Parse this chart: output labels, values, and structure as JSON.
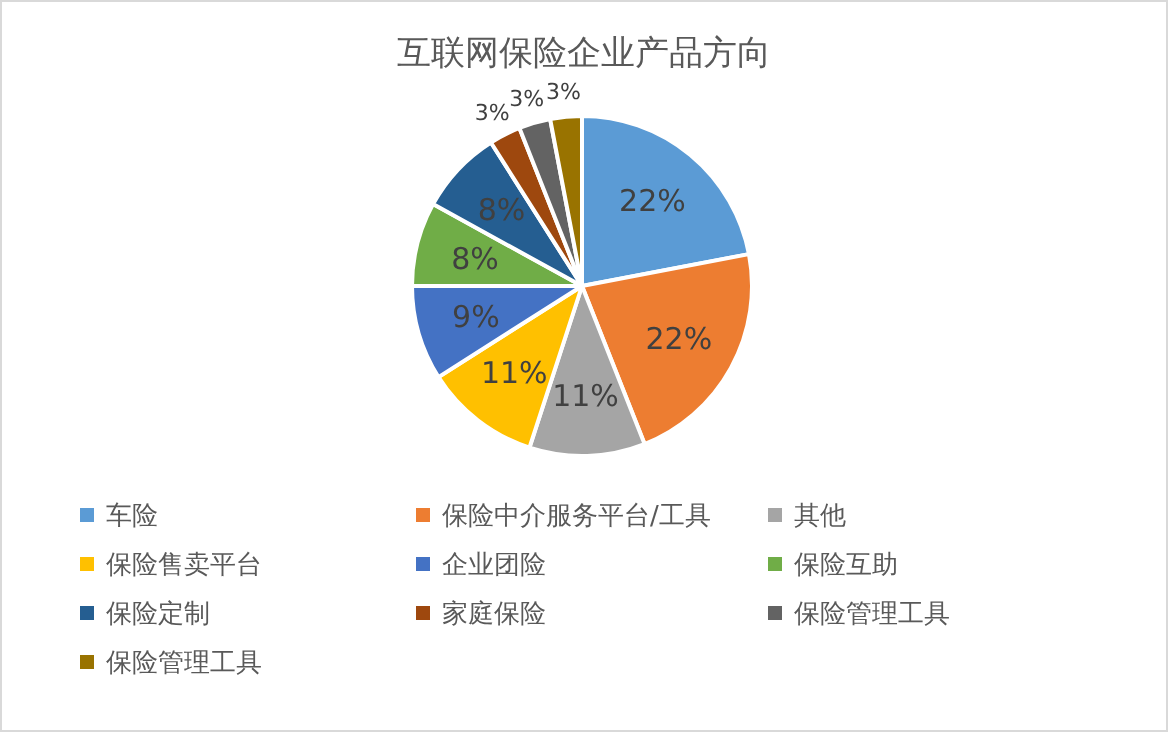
{
  "chart_data": {
    "type": "pie",
    "title": "互联网保险企业产品方向",
    "categories": [
      "车险",
      "保险中介服务平台/工具",
      "其他",
      "保险售卖平台",
      "企业团险",
      "保险互助",
      "保险定制",
      "家庭保险",
      "保险管理工具",
      "保险管理工具"
    ],
    "values": [
      22,
      22,
      11,
      11,
      9,
      8,
      8,
      3,
      3,
      3
    ],
    "colors": [
      "#5b9bd5",
      "#ed7d31",
      "#a5a5a5",
      "#ffc000",
      "#4472c4",
      "#70ad47",
      "#255e91",
      "#9e480e",
      "#636363",
      "#997300"
    ],
    "value_labels": [
      "22%",
      "22%",
      "11%",
      "11%",
      "9%",
      "8%",
      "8%",
      "3%",
      "3%",
      "3%"
    ],
    "legend": "bottom"
  }
}
